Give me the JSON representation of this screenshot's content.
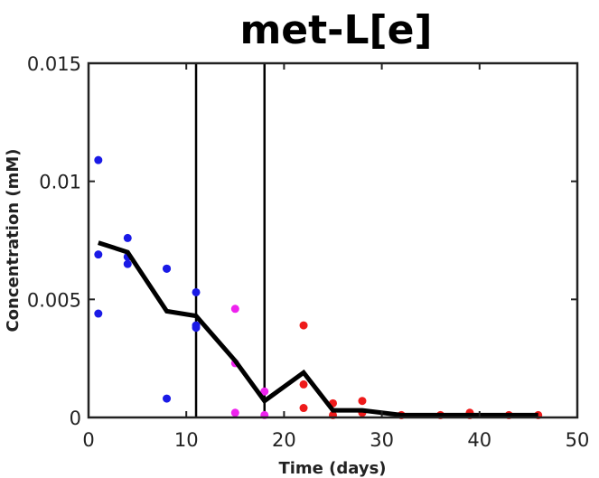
{
  "chart_data": {
    "type": "scatter",
    "title": "met-L[e]",
    "xlabel": "Time (days)",
    "ylabel": "Concentration (mM)",
    "xlim": [
      0,
      50
    ],
    "ylim": [
      0,
      0.015
    ],
    "x_ticks": [
      0,
      10,
      20,
      30,
      40,
      50
    ],
    "x_tick_labels": [
      "0",
      "10",
      "20",
      "30",
      "40",
      "50"
    ],
    "y_ticks": [
      0,
      0.005,
      0.01,
      0.015
    ],
    "y_tick_labels": [
      "0",
      "0.005",
      "0.01",
      "0.015"
    ],
    "grid": false,
    "legend": "none",
    "phase_boundaries": [
      11,
      18
    ],
    "series": [
      {
        "color": "#1a1ae6",
        "points": [
          [
            1,
            0.0109
          ],
          [
            1,
            0.0069
          ],
          [
            1,
            0.0044
          ],
          [
            4,
            0.0076
          ],
          [
            4,
            0.0068
          ],
          [
            4,
            0.0065
          ],
          [
            8,
            0.0063
          ],
          [
            8,
            0.0063
          ],
          [
            8,
            0.0008
          ],
          [
            11,
            0.0053
          ],
          [
            11,
            0.0039
          ],
          [
            11,
            0.0038
          ]
        ]
      },
      {
        "color": "#ee22ee",
        "points": [
          [
            15,
            0.0046
          ],
          [
            15,
            0.0023
          ],
          [
            15,
            0.0002
          ],
          [
            18,
            0.0011
          ],
          [
            18,
            0.0001
          ]
        ]
      },
      {
        "color": "#ee1a1a",
        "points": [
          [
            22,
            0.0039
          ],
          [
            22,
            0.0014
          ],
          [
            22,
            0.0004
          ],
          [
            25,
            0.0006
          ],
          [
            25,
            0.0001
          ],
          [
            28,
            0.0007
          ],
          [
            28,
            0.0002
          ],
          [
            32,
            0.0001
          ],
          [
            36,
            0.0001
          ],
          [
            39,
            0.0002
          ],
          [
            39,
            0.0001
          ],
          [
            43,
            0.0001
          ],
          [
            46,
            0.0001
          ]
        ]
      }
    ],
    "mean_line": {
      "color": "#000000",
      "x": [
        1,
        4,
        8,
        11,
        15,
        18,
        22,
        25,
        28,
        32,
        36,
        39,
        43,
        46
      ],
      "y": [
        0.0074,
        0.007,
        0.0045,
        0.0043,
        0.0024,
        0.0007,
        0.0019,
        0.0003,
        0.0003,
        0.0001,
        0.0001,
        0.0001,
        0.0001,
        0.0001
      ]
    }
  }
}
